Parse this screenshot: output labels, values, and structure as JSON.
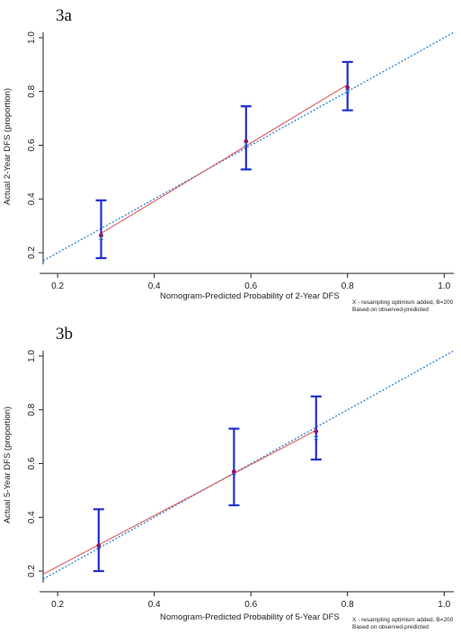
{
  "chart_data": [
    {
      "type": "scatter",
      "panel_label": "3a",
      "xlabel": "Nomogram-Predicted Probability of 2-Year DFS",
      "ylabel": "Actual 2-Year DFS (proportion)",
      "xlim": [
        0.17,
        1.02
      ],
      "ylim": [
        0.17,
        1.02
      ],
      "x_ticks": [
        "0.2",
        "0.4",
        "0.6",
        "0.8",
        "1.0"
      ],
      "y_ticks": [
        "0.2",
        "0.4",
        "0.6",
        "0.8",
        "1.0"
      ],
      "notes": [
        "X - resampling optimism added, B=200",
        "Based on observed-predicted"
      ],
      "grid": false,
      "reference_line": {
        "style": "dotted",
        "color": "#2a7fd4",
        "from": [
          0.17,
          0.17
        ],
        "to": [
          1.02,
          1.02
        ]
      },
      "observed_line_color": "#e05a5a",
      "errorbar_color": "#1f2fd0",
      "point_color": "#8b1a6b",
      "points": [
        {
          "x": 0.29,
          "y": 0.265,
          "lo": 0.18,
          "hi": 0.395
        },
        {
          "x": 0.59,
          "y": 0.615,
          "lo": 0.51,
          "hi": 0.745
        },
        {
          "x": 0.8,
          "y": 0.815,
          "lo": 0.73,
          "hi": 0.91
        }
      ],
      "corrected": [
        {
          "x": 0.29,
          "y": 0.255
        },
        {
          "x": 0.59,
          "y": 0.605
        },
        {
          "x": 0.8,
          "y": 0.8
        }
      ]
    },
    {
      "type": "scatter",
      "panel_label": "3b",
      "xlabel": "Nomogram-Predicted Probability of 5-Year DFS",
      "ylabel": "Actual 5-Year DFS (proportion)",
      "xlim": [
        0.17,
        1.02
      ],
      "ylim": [
        0.17,
        1.02
      ],
      "x_ticks": [
        "0.2",
        "0.4",
        "0.6",
        "0.8",
        "1.0"
      ],
      "y_ticks": [
        "0.2",
        "0.4",
        "0.6",
        "0.8",
        "1.0"
      ],
      "notes": [
        "X - resampling optimism added, B=200",
        "Based on observed-predicted"
      ],
      "grid": false,
      "reference_line": {
        "style": "dotted",
        "color": "#2a7fd4",
        "from": [
          0.17,
          0.17
        ],
        "to": [
          1.02,
          1.02
        ]
      },
      "observed_line_color": "#e05a5a",
      "errorbar_color": "#1f2fd0",
      "point_color": "#8b1a6b",
      "points": [
        {
          "x": 0.285,
          "y": 0.295,
          "lo": 0.2,
          "hi": 0.43
        },
        {
          "x": 0.565,
          "y": 0.57,
          "lo": 0.445,
          "hi": 0.73
        },
        {
          "x": 0.735,
          "y": 0.72,
          "lo": 0.615,
          "hi": 0.85
        }
      ],
      "corrected": [
        {
          "x": 0.285,
          "y": 0.29
        },
        {
          "x": 0.565,
          "y": 0.565
        },
        {
          "x": 0.735,
          "y": 0.695
        }
      ]
    }
  ]
}
